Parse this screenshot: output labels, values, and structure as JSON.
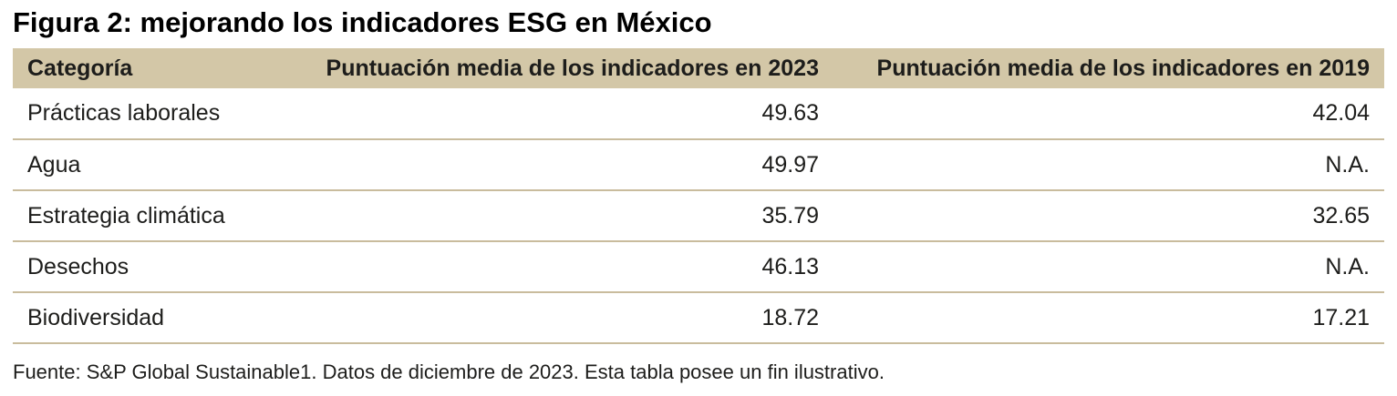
{
  "chart_data": {
    "type": "table",
    "title": "Figura 2: mejorando los indicadores ESG en México",
    "columns": [
      "Categoría",
      "Puntuación media de los indicadores en 2023",
      "Puntuación media de los indicadores en 2019"
    ],
    "rows": [
      [
        "Prácticas laborales",
        "49.63",
        "42.04"
      ],
      [
        "Agua",
        "49.97",
        "N.A."
      ],
      [
        "Estrategia climática",
        "35.79",
        "32.65"
      ],
      [
        "Desechos",
        "46.13",
        "N.A."
      ],
      [
        "Biodiversidad",
        "18.72",
        "17.21"
      ]
    ],
    "source": "Fuente: S&P Global Sustainable1. Datos de diciembre de 2023. Esta tabla posee un fin ilustrativo."
  },
  "colors": {
    "header_bg": "#d3c7a7",
    "row_line": "#c9bc9d",
    "text": "#1d1d1b"
  }
}
